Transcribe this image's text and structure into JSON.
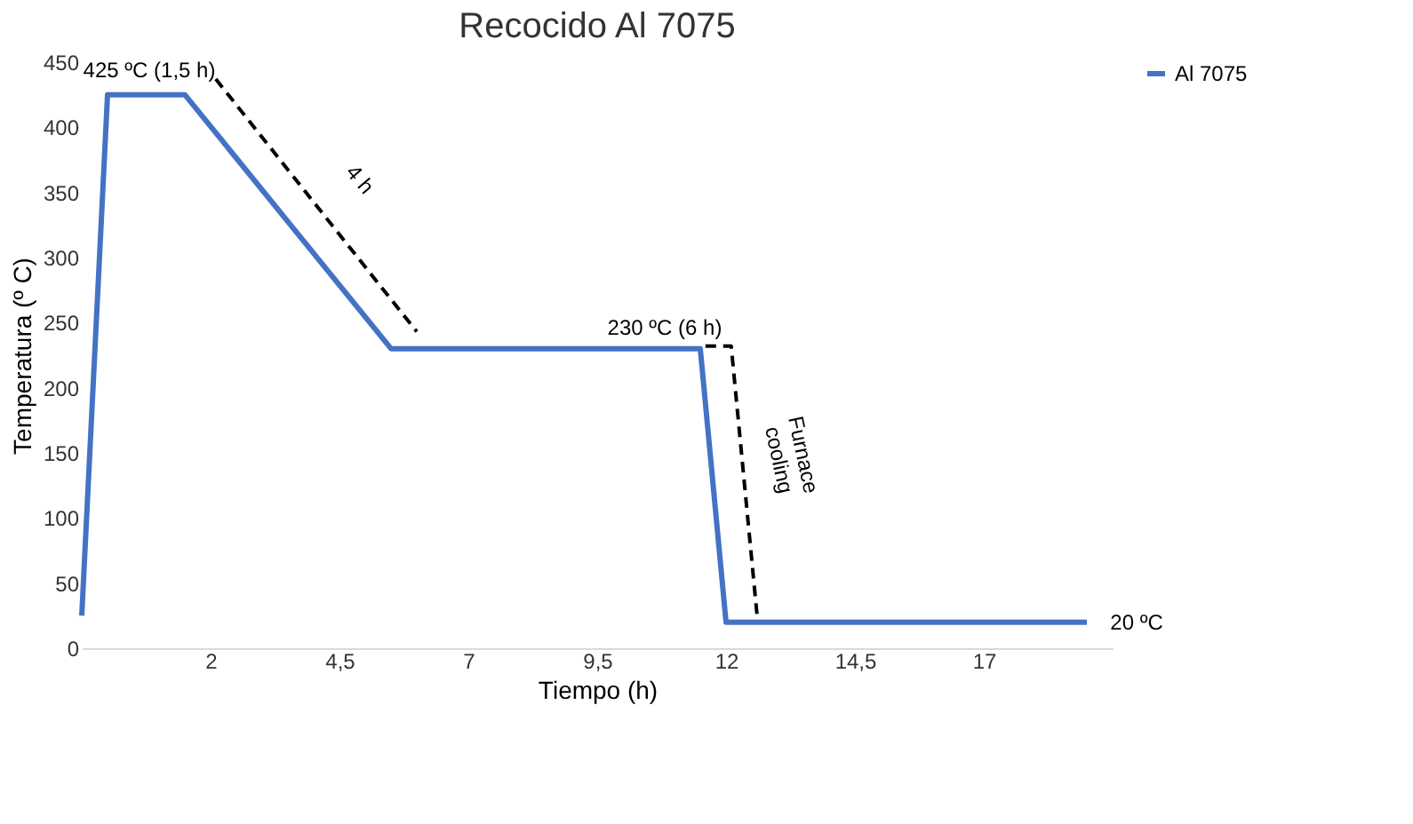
{
  "chart_data": {
    "type": "line",
    "title": "Recocido Al 7075",
    "xlabel": "Tiempo (h)",
    "ylabel": "Temperatura (º C)",
    "xlim": [
      -0.5,
      19.5
    ],
    "ylim": [
      0,
      450
    ],
    "xticks": [
      {
        "value": 2,
        "label": "2"
      },
      {
        "value": 4.5,
        "label": "4,5"
      },
      {
        "value": 7,
        "label": "7"
      },
      {
        "value": 9.5,
        "label": "9,5"
      },
      {
        "value": 12,
        "label": "12"
      },
      {
        "value": 14.5,
        "label": "14,5"
      },
      {
        "value": 17,
        "label": "17"
      }
    ],
    "yticks": [
      0,
      50,
      100,
      150,
      200,
      250,
      300,
      350,
      400,
      450
    ],
    "grid": false,
    "legend": "right",
    "series": [
      {
        "name": "Al 7075",
        "color": "#4472c4",
        "line_style": "solid",
        "x": [
          -0.5,
          0,
          1.5,
          5.5,
          11.5,
          12,
          19
        ],
        "values": [
          25,
          425,
          425,
          230,
          230,
          20,
          20
        ]
      },
      {
        "color": "#000000",
        "line_style": "dashed",
        "x": [
          2.1,
          6
        ],
        "values": [
          437,
          243
        ]
      },
      {
        "color": "#000000",
        "line_style": "dashed",
        "x": [
          11.6,
          12.1,
          12.6
        ],
        "values": [
          232,
          232,
          26
        ]
      }
    ],
    "annotations": [
      {
        "text": "425 ºC (1,5 h)",
        "x": 1.5,
        "y": 425
      },
      "4 h",
      {
        "text": "230 ºC (6 h)",
        "x": 11.5,
        "y": 230
      },
      "Furnace cooling",
      {
        "text": "20 ºC",
        "x": 19,
        "y": 20
      }
    ]
  }
}
